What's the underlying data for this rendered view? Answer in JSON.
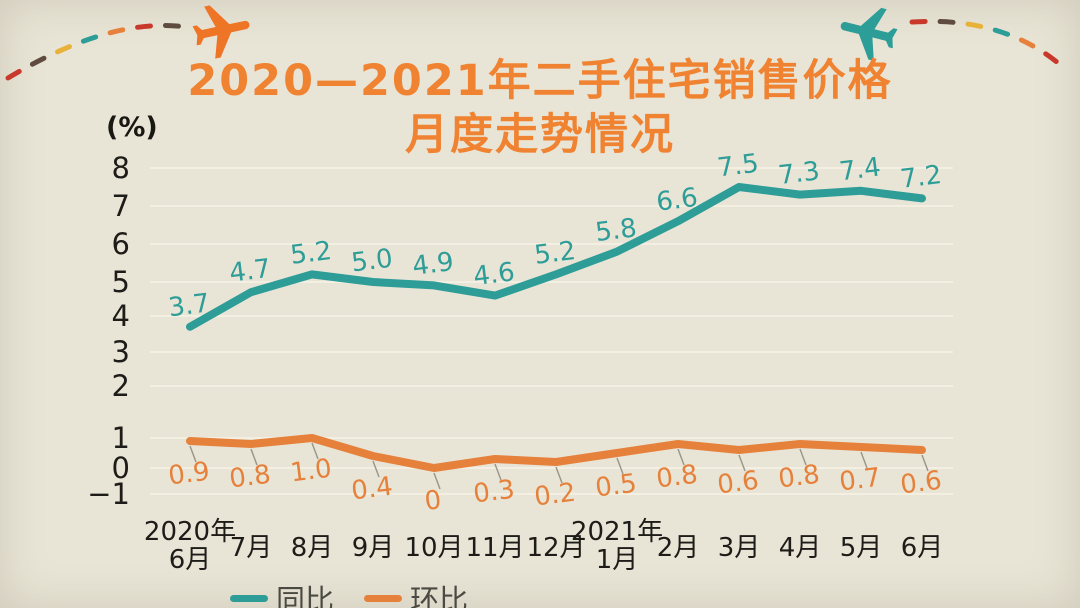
{
  "header": {
    "title_line1": "2020—2021年二手住宅销售价格",
    "title_line2": "月度走势情况"
  },
  "colors": {
    "background": "#e9e5d6",
    "title": "#ef8332",
    "tongbi_teal": "#2e9d98",
    "huanbi_orange": "#e6813c",
    "axis_text": "#1d1c18",
    "legend_text": "#4a4a42",
    "gridline": "#f3f0e3",
    "plane_orange": "#ee7426",
    "plane_teal": "#2d9d98"
  },
  "decorations": {
    "left_plane_icon": "airplane-flying-right-icon",
    "right_plane_icon": "airplane-flying-left-icon",
    "trail_colors": [
      "#c9392b",
      "#5f4b3f",
      "#e8b23a",
      "#2d9d98",
      "#e6813c"
    ]
  },
  "chart_data": {
    "type": "line",
    "title": "2020—2021年二手住宅销售价格月度走势情况",
    "unit_label": "(%)",
    "categories": [
      "2020年\n6月",
      "7月",
      "8月",
      "9月",
      "10月",
      "11月",
      "12月",
      "2021年\n1月",
      "2月",
      "3月",
      "4月",
      "5月",
      "6月"
    ],
    "series": [
      {
        "name": "同比",
        "color": "#2e9d98",
        "values": [
          3.7,
          4.7,
          5.2,
          5.0,
          4.9,
          4.6,
          5.2,
          5.8,
          6.6,
          7.5,
          7.3,
          7.4,
          7.2
        ],
        "labels": [
          "3.7",
          "4.7",
          "5.2",
          "5.0",
          "4.9",
          "4.6",
          "5.2",
          "5.8",
          "6.6",
          "7.5",
          "7.3",
          "7.4",
          "7.2"
        ]
      },
      {
        "name": "环比",
        "color": "#e6813c",
        "values": [
          0.9,
          0.8,
          1.0,
          0.4,
          0,
          0.3,
          0.2,
          0.5,
          0.8,
          0.6,
          0.8,
          0.7,
          0.6
        ],
        "labels": [
          "0.9",
          "0.8",
          "1.0",
          "0.4",
          "0",
          "0.3",
          "0.2",
          "0.5",
          "0.8",
          "0.6",
          "0.8",
          "0.7",
          "0.6"
        ]
      }
    ],
    "yticks": [
      8,
      7,
      6,
      5,
      4,
      3,
      2,
      1,
      0,
      -1
    ],
    "ylim": [
      -1,
      8
    ],
    "grid": true,
    "legend_position": "bottom-left"
  }
}
